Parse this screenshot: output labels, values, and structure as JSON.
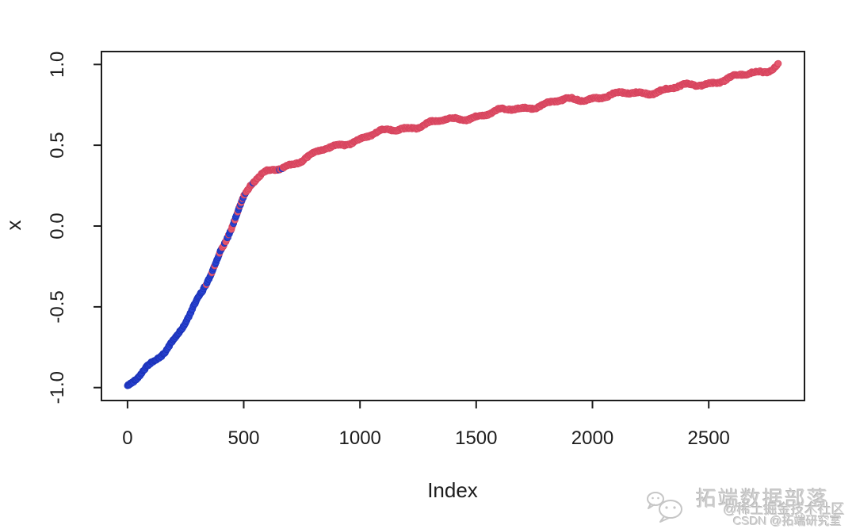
{
  "page": {
    "background": "#ffffff"
  },
  "chart_data": {
    "type": "scatter",
    "title": "",
    "xlabel": "Index",
    "ylabel": "x",
    "x_ticks": [
      0,
      500,
      1000,
      1500,
      2000,
      2500
    ],
    "x_tick_labels": [
      "0",
      "500",
      "1000",
      "1500",
      "2000",
      "2500"
    ],
    "y_ticks": [
      -1.0,
      -0.5,
      0.0,
      0.5,
      1.0
    ],
    "y_tick_labels": [
      "-1.0",
      "-0.5",
      "0.0",
      "0.5",
      "1.0"
    ],
    "xlim": [
      -112,
      2912
    ],
    "ylim": [
      -1.08,
      1.08
    ],
    "grid": false,
    "legend": null,
    "axis_color": "#1d1d1d",
    "n_points": 2800,
    "point_step": 3,
    "point_radius": 4,
    "series_colors": {
      "low_class_fill": "#2a44d4",
      "low_class_stroke": "#1c33b8",
      "high_class_fill": "#e65a70",
      "high_class_stroke": "#d6445e"
    },
    "color_rule": "sorted values plotted vs index; blue class dominates low indices, red class high indices, probabilistic mix between indices ~330 and ~700 centered near 430",
    "transition": {
      "center_index": 430,
      "width": 55,
      "mix_min_index": 330,
      "mix_max_index": 700,
      "floor": 0.05,
      "ceiling": 0.97
    },
    "anchors": [
      [
        0,
        -1.0
      ],
      [
        15,
        -0.985
      ],
      [
        40,
        -0.955
      ],
      [
        100,
        -0.87
      ],
      [
        160,
        -0.78
      ],
      [
        220,
        -0.66
      ],
      [
        270,
        -0.55
      ],
      [
        320,
        -0.42
      ],
      [
        360,
        -0.3
      ],
      [
        400,
        -0.155
      ],
      [
        440,
        -0.02
      ],
      [
        470,
        0.09
      ],
      [
        500,
        0.19
      ],
      [
        530,
        0.26
      ],
      [
        560,
        0.3
      ],
      [
        600,
        0.335
      ],
      [
        650,
        0.365
      ],
      [
        700,
        0.39
      ],
      [
        760,
        0.42
      ],
      [
        820,
        0.45
      ],
      [
        900,
        0.49
      ],
      [
        1000,
        0.535
      ],
      [
        1100,
        0.575
      ],
      [
        1200,
        0.61
      ],
      [
        1300,
        0.64
      ],
      [
        1400,
        0.665
      ],
      [
        1500,
        0.69
      ],
      [
        1600,
        0.71
      ],
      [
        1700,
        0.73
      ],
      [
        1800,
        0.75
      ],
      [
        1900,
        0.77
      ],
      [
        2000,
        0.79
      ],
      [
        2100,
        0.81
      ],
      [
        2200,
        0.83
      ],
      [
        2300,
        0.85
      ],
      [
        2400,
        0.87
      ],
      [
        2500,
        0.89
      ],
      [
        2600,
        0.913
      ],
      [
        2650,
        0.925
      ],
      [
        2700,
        0.94
      ],
      [
        2740,
        0.955
      ],
      [
        2770,
        0.972
      ],
      [
        2799,
        1.0
      ]
    ]
  },
  "watermark": {
    "brand": "拓端数据部落",
    "line2": "@稀土掘金技术社区",
    "line3": "CSDN @拓端研究室",
    "color": "#cfcfcf",
    "icon": "chat-bubbles-icon"
  }
}
